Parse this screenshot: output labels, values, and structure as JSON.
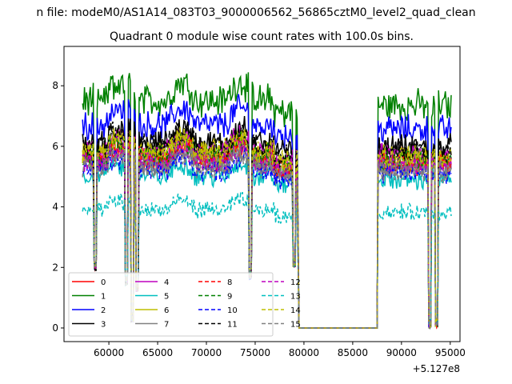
{
  "chart_data": {
    "type": "line",
    "suptitle": "n file: modeM0/AS1A14_083T03_9000006562_56865cztM0_level2_quad_clean",
    "title": "Quadrant 0 module wise count rates with 100.0s bins.",
    "xlabel": "",
    "ylabel": "",
    "x_offset_label": "+5.127e8",
    "xlim": [
      55400,
      96000
    ],
    "ylim": [
      -0.45,
      9.3
    ],
    "x_ticks": [
      60000,
      65000,
      70000,
      75000,
      80000,
      85000,
      90000,
      95000
    ],
    "x_tick_labels": [
      "60000",
      "65000",
      "70000",
      "75000",
      "80000",
      "85000",
      "90000",
      "95000"
    ],
    "y_ticks": [
      0,
      2,
      4,
      6,
      8
    ],
    "y_tick_labels": [
      "0",
      "2",
      "4",
      "6",
      "8"
    ],
    "grid": false,
    "legend_placement": "lower-left",
    "legend_columns": 4,
    "active_intervals": [
      [
        57300,
        79300
      ],
      [
        87600,
        95100
      ]
    ],
    "dips": [
      {
        "x": 58600,
        "y": 1.9
      },
      {
        "x": 61800,
        "y": 1.4
      },
      {
        "x": 62400,
        "y": 0.2
      },
      {
        "x": 62900,
        "y": 1.2
      },
      {
        "x": 74500,
        "y": 1.6
      },
      {
        "x": 79000,
        "y": 2.0
      },
      {
        "x": 92900,
        "y": 0.0
      },
      {
        "x": 93600,
        "y": 0.0
      }
    ],
    "series": [
      {
        "name": "0",
        "color": "#ff0000",
        "dash": "solid",
        "level": 5.5
      },
      {
        "name": "1",
        "color": "#008000",
        "dash": "solid",
        "level": 7.5
      },
      {
        "name": "2",
        "color": "#0000ff",
        "dash": "solid",
        "level": 6.7
      },
      {
        "name": "3",
        "color": "#000000",
        "dash": "solid",
        "level": 6.1
      },
      {
        "name": "4",
        "color": "#bf00bf",
        "dash": "solid",
        "level": 5.8
      },
      {
        "name": "5",
        "color": "#00bfbf",
        "dash": "solid",
        "level": 5.0
      },
      {
        "name": "6",
        "color": "#bfbf00",
        "dash": "solid",
        "level": 5.7
      },
      {
        "name": "7",
        "color": "#808080",
        "dash": "solid",
        "level": 5.4
      },
      {
        "name": "8",
        "color": "#ff0000",
        "dash": "dashed",
        "level": 5.6
      },
      {
        "name": "9",
        "color": "#008000",
        "dash": "dashed",
        "level": 5.7
      },
      {
        "name": "10",
        "color": "#0000ff",
        "dash": "dashed",
        "level": 5.2
      },
      {
        "name": "11",
        "color": "#000000",
        "dash": "dashed",
        "level": 6.0
      },
      {
        "name": "12",
        "color": "#bf00bf",
        "dash": "dashed",
        "level": 5.5
      },
      {
        "name": "13",
        "color": "#00bfbf",
        "dash": "dashed",
        "level": 3.9
      },
      {
        "name": "14",
        "color": "#bfbf00",
        "dash": "dashed",
        "level": 5.8
      },
      {
        "name": "15",
        "color": "#808080",
        "dash": "dashed",
        "level": 5.3
      }
    ]
  }
}
